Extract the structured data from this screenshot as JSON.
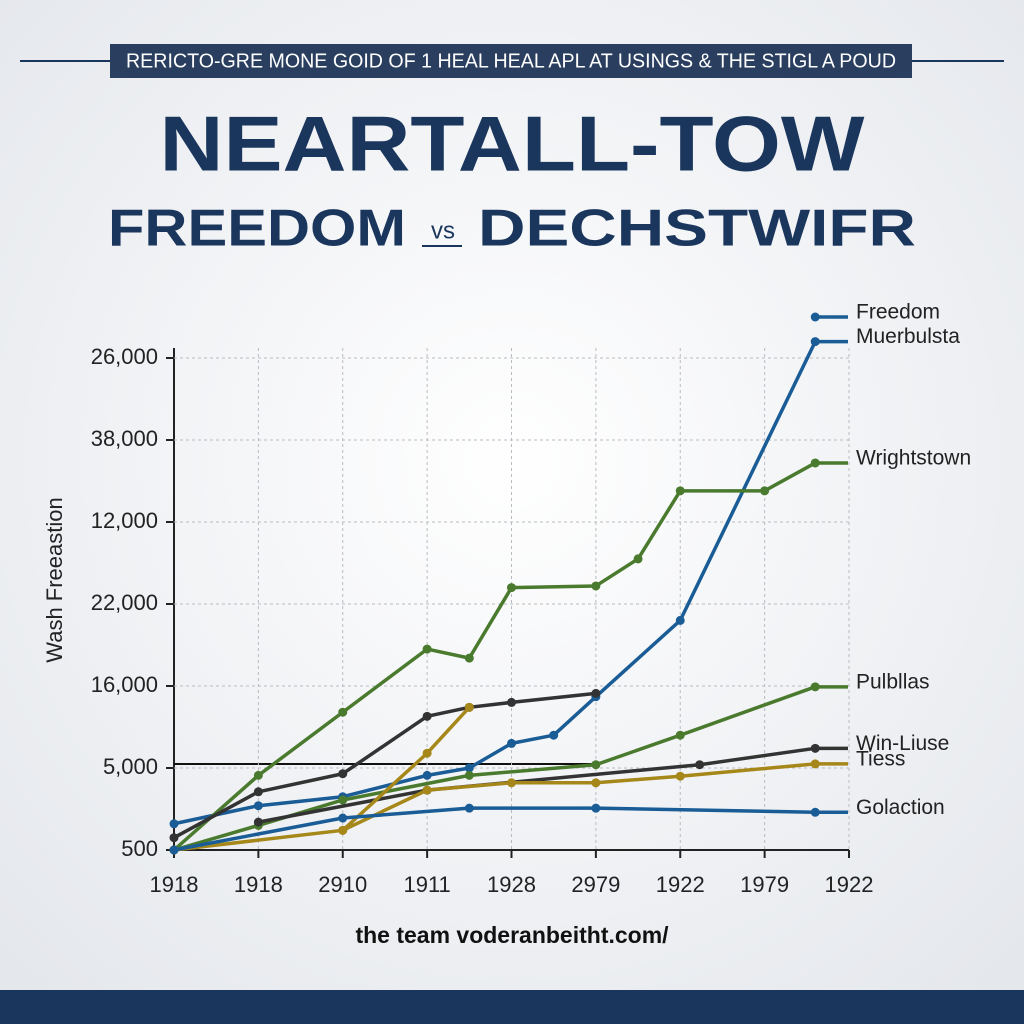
{
  "header": {
    "banner": "RERICTO-GRE MONE GOID OF 1 HEAL HEAL APL AT USINGS & THE STIGL A POUD",
    "title": "NEARTALL-TOW",
    "subtitle_left": "FREEDOM",
    "subtitle_vs": "vs",
    "subtitle_right": "DECHSTWIFR"
  },
  "chart_data": {
    "type": "line",
    "y_label": "Wash Freeastion",
    "footer": "the team voderanbeitht.com/",
    "xlim": [
      0,
      8
    ],
    "xticks": [
      {
        "value": 0,
        "label": "1918"
      },
      {
        "value": 1,
        "label": "1918"
      },
      {
        "value": 2,
        "label": "2910"
      },
      {
        "value": 3,
        "label": "1911"
      },
      {
        "value": 4,
        "label": "1928"
      },
      {
        "value": 5,
        "label": "2979"
      },
      {
        "value": 6,
        "label": "1922"
      },
      {
        "value": 7,
        "label": "1979"
      },
      {
        "value": 8,
        "label": "1922"
      }
    ],
    "ylim": [
      0,
      6
    ],
    "yticks": [
      {
        "value": 0,
        "label": "500"
      },
      {
        "value": 1,
        "label": "5,000"
      },
      {
        "value": 2,
        "label": "16,000"
      },
      {
        "value": 3,
        "label": "22,000"
      },
      {
        "value": 4,
        "label": "12,000"
      },
      {
        "value": 5,
        "label": "38,000"
      },
      {
        "value": 6,
        "label": "26,000"
      }
    ],
    "grid": true,
    "series": [
      {
        "name": "Freedom",
        "color": "#1a5c96",
        "x": [
          7.6
        ],
        "values": [
          6.5
        ]
      },
      {
        "name": "Muerbulsta",
        "color": "#1a5c96",
        "x": [
          0,
          1,
          2,
          3,
          3.5,
          4,
          4.5,
          5,
          6,
          7.6
        ],
        "values": [
          0.32,
          0.54,
          0.65,
          0.91,
          1.0,
          1.3,
          1.4,
          1.87,
          2.8,
          6.2
        ]
      },
      {
        "name": "Wrightstown",
        "color": "#4a7a2e",
        "x": [
          0,
          1,
          2,
          3,
          3.5,
          4,
          5,
          5.5,
          6,
          7,
          7.6
        ],
        "values": [
          0,
          0.91,
          1.68,
          2.45,
          2.34,
          3.2,
          3.22,
          3.55,
          4.38,
          4.38,
          4.72
        ]
      },
      {
        "name": "Pulbllas",
        "color": "#4a7a2e",
        "x": [
          0,
          1,
          2,
          3.5,
          5,
          6,
          7.6
        ],
        "values": [
          0,
          0.3,
          0.61,
          0.91,
          1.04,
          1.4,
          1.99
        ]
      },
      {
        "name": "Win-Liuse",
        "color": "#333333",
        "x": [
          0,
          1,
          2,
          3,
          3.5,
          4,
          5,
          null,
          1,
          3,
          6.23,
          7.6
        ],
        "values": [
          0.15,
          0.71,
          0.93,
          1.63,
          1.74,
          1.8,
          1.91,
          null,
          0.34,
          0.73,
          1.04,
          1.24
        ]
      },
      {
        "name": "Tiess",
        "color": "#a6871a",
        "x": [
          0,
          2,
          3,
          3.5,
          null,
          2,
          3,
          4,
          5,
          6,
          7.6
        ],
        "values": [
          0,
          0.24,
          1.18,
          1.74,
          null,
          0.24,
          0.73,
          0.82,
          0.82,
          0.9,
          1.05
        ]
      },
      {
        "name": "Golaction",
        "color": "#1a5c96",
        "x": [
          0,
          2,
          3.5,
          5,
          7.6
        ],
        "values": [
          0,
          0.39,
          0.51,
          0.51,
          0.46
        ]
      }
    ]
  }
}
